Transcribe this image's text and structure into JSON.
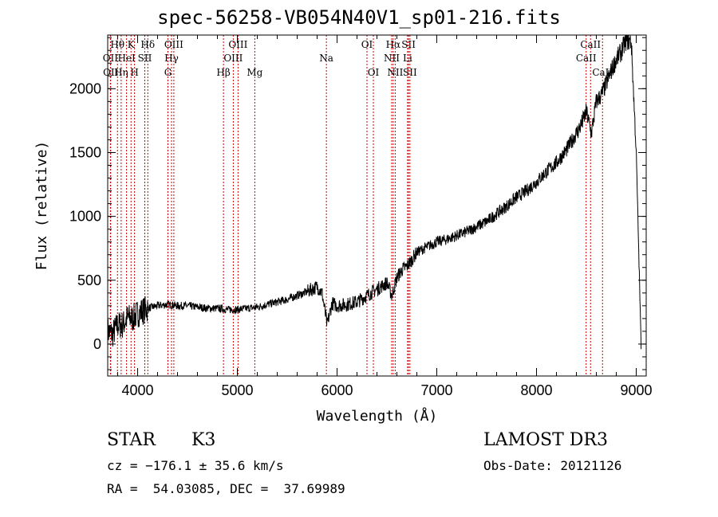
{
  "chart_data": {
    "type": "line",
    "title": "spec-56258-VB054N40V1_sp01-216.fits",
    "xlabel": "Wavelength (Å)",
    "ylabel": "Flux (relative)",
    "xlim": [
      3700,
      9100
    ],
    "ylim": [
      -250,
      2420
    ],
    "x_ticks": [
      4000,
      5000,
      6000,
      7000,
      8000,
      9000
    ],
    "y_ticks": [
      0,
      500,
      1000,
      1500,
      2000
    ],
    "series": [
      {
        "name": "spectrum",
        "x": [
          3700,
          3750,
          3800,
          3850,
          3900,
          3950,
          4000,
          4050,
          4100,
          4200,
          4300,
          4400,
          4500,
          4600,
          4700,
          4800,
          4900,
          5000,
          5100,
          5200,
          5300,
          5400,
          5500,
          5600,
          5700,
          5800,
          5850,
          5900,
          5950,
          6000,
          6100,
          6200,
          6300,
          6400,
          6500,
          6550,
          6600,
          6650,
          6700,
          6750,
          6800,
          6900,
          7000,
          7100,
          7200,
          7300,
          7400,
          7500,
          7600,
          7700,
          7800,
          7900,
          8000,
          8100,
          8200,
          8300,
          8400,
          8450,
          8500,
          8550,
          8600,
          8650,
          8700,
          8750,
          8800,
          8850,
          8900,
          8950,
          9000,
          9050
        ],
        "y": [
          100,
          80,
          150,
          150,
          210,
          200,
          240,
          260,
          280,
          300,
          310,
          300,
          300,
          290,
          280,
          280,
          270,
          270,
          280,
          290,
          310,
          330,
          350,
          380,
          410,
          450,
          400,
          150,
          320,
          300,
          310,
          330,
          380,
          430,
          480,
          380,
          520,
          580,
          610,
          660,
          720,
          760,
          800,
          820,
          850,
          880,
          920,
          960,
          1020,
          1080,
          1150,
          1200,
          1270,
          1350,
          1420,
          1520,
          1650,
          1720,
          1820,
          1650,
          1900,
          1950,
          2040,
          2140,
          2230,
          2290,
          2380,
          2370,
          1500,
          -50
        ]
      }
    ],
    "lines": [
      {
        "label": "Hθ",
        "x": 3798,
        "row": 0
      },
      {
        "label": "K",
        "x": 3934,
        "row": 0
      },
      {
        "label": "Hδ",
        "x": 4102,
        "row": 0
      },
      {
        "label": "OIII",
        "x": 4363,
        "row": 0
      },
      {
        "label": "OIII",
        "x": 5007,
        "row": 0
      },
      {
        "label": "OI",
        "x": 6300,
        "row": 0
      },
      {
        "label": "Hα",
        "x": 6563,
        "row": 0
      },
      {
        "label": "SII",
        "x": 6717,
        "row": 0
      },
      {
        "label": "CaII",
        "x": 8542,
        "row": 0
      },
      {
        "label": "OII",
        "x": 3727,
        "row": 1
      },
      {
        "label": "HeI",
        "x": 3889,
        "row": 1
      },
      {
        "label": "SII",
        "x": 4072,
        "row": 1
      },
      {
        "label": "Hγ",
        "x": 4340,
        "row": 1
      },
      {
        "label": "OIII",
        "x": 4959,
        "row": 1
      },
      {
        "label": "Na",
        "x": 5893,
        "row": 1
      },
      {
        "label": "NII",
        "x": 6548,
        "row": 1
      },
      {
        "label": "Li",
        "x": 6707,
        "row": 1
      },
      {
        "label": "CaII",
        "x": 8498,
        "row": 1
      },
      {
        "label": "OII",
        "x": 3730,
        "row": 2
      },
      {
        "label": "Hη",
        "x": 3835,
        "row": 2
      },
      {
        "label": "H",
        "x": 3969,
        "row": 2
      },
      {
        "label": "G",
        "x": 4304,
        "row": 2
      },
      {
        "label": "Hβ",
        "x": 4861,
        "row": 2
      },
      {
        "label": "Mg",
        "x": 5175,
        "row": 2
      },
      {
        "label": "OI",
        "x": 6364,
        "row": 2
      },
      {
        "label": "NII",
        "x": 6583,
        "row": 2
      },
      {
        "label": "SII",
        "x": 6731,
        "row": 2
      },
      {
        "label": "CaII",
        "x": 8662,
        "row": 2
      }
    ],
    "line_color": "#cc0000"
  },
  "info": {
    "object_class": "STAR",
    "subclass": "K3",
    "survey": "LAMOST DR3",
    "cz": "cz = −176.1 ± 35.6 km/s",
    "obs_date": "Obs-Date: 20121126",
    "coords": "RA =  54.03085, DEC =  37.69989"
  }
}
